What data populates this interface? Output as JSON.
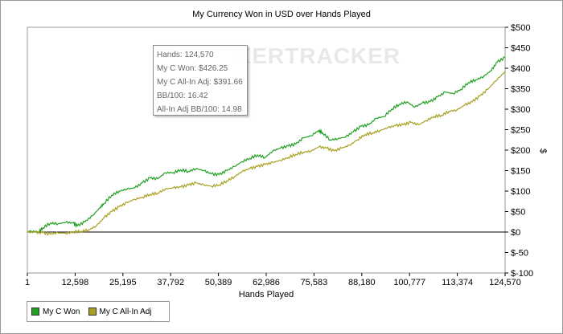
{
  "chart_data": {
    "type": "line",
    "title": "My Currency Won in USD over Hands Played",
    "xlabel": "Hands Played",
    "ylabel": "$",
    "xlim": [
      1,
      124570
    ],
    "ylim": [
      -100,
      500
    ],
    "x_ticks": [
      "1",
      "12,598",
      "25,195",
      "37,792",
      "50,389",
      "62,986",
      "75,583",
      "88,180",
      "100,777",
      "113,374",
      "124,570"
    ],
    "y_ticks": [
      "$500",
      "$450",
      "$400",
      "$350",
      "$300",
      "$250",
      "$200",
      "$150",
      "$100",
      "$50",
      "$0",
      "$-50",
      "$-100"
    ],
    "grid": false,
    "legend_position": "bottom-left",
    "series": [
      {
        "name": "My C Won",
        "color": "#22a022",
        "x": [
          1,
          1000,
          3000,
          4000,
          6000,
          8000,
          10000,
          12000,
          13000,
          15000,
          17000,
          19000,
          20000,
          22000,
          24000,
          26000,
          28000,
          30000,
          32000,
          34000,
          36000,
          38000,
          40000,
          42000,
          44000,
          46000,
          48000,
          50000,
          52000,
          54000,
          56000,
          58000,
          60000,
          62000,
          64000,
          66000,
          68000,
          70000,
          72000,
          74000,
          76000,
          77000,
          79000,
          81000,
          83000,
          85000,
          87000,
          89000,
          91000,
          93000,
          95000,
          97000,
          99000,
          101000,
          103000,
          105000,
          107000,
          109000,
          111000,
          113000,
          115000,
          117000,
          119000,
          121000,
          122500,
          124570
        ],
        "y": [
          0,
          2,
          0,
          10,
          22,
          20,
          24,
          22,
          15,
          25,
          40,
          60,
          70,
          90,
          100,
          105,
          108,
          120,
          132,
          130,
          145,
          145,
          152,
          148,
          155,
          150,
          142,
          140,
          150,
          160,
          172,
          180,
          188,
          182,
          198,
          205,
          210,
          215,
          230,
          235,
          248,
          242,
          225,
          228,
          232,
          245,
          258,
          262,
          278,
          282,
          300,
          312,
          318,
          305,
          315,
          318,
          330,
          342,
          338,
          348,
          365,
          372,
          380,
          395,
          415,
          426.25
        ]
      },
      {
        "name": "My C All-In Adj",
        "color": "#a8a020",
        "x": [
          1,
          2000,
          4000,
          6000,
          8000,
          10000,
          12000,
          14000,
          16000,
          18000,
          20000,
          22000,
          24000,
          26000,
          28000,
          30000,
          32000,
          34000,
          36000,
          38000,
          40000,
          42000,
          44000,
          46000,
          48000,
          50000,
          52000,
          54000,
          56000,
          58000,
          60000,
          62000,
          64000,
          66000,
          68000,
          70000,
          72000,
          74000,
          76000,
          78000,
          80000,
          82000,
          84000,
          86000,
          88000,
          90000,
          92000,
          94000,
          96000,
          98000,
          100000,
          102000,
          104000,
          106000,
          108000,
          110000,
          112000,
          114000,
          116000,
          118000,
          120000,
          122000,
          124570
        ],
        "y": [
          0,
          0,
          -2,
          -5,
          -2,
          -3,
          0,
          2,
          5,
          15,
          35,
          50,
          62,
          72,
          80,
          85,
          92,
          95,
          105,
          108,
          110,
          115,
          120,
          115,
          112,
          115,
          125,
          135,
          148,
          155,
          160,
          165,
          170,
          175,
          182,
          190,
          195,
          198,
          208,
          205,
          198,
          205,
          212,
          225,
          238,
          242,
          248,
          255,
          260,
          262,
          268,
          262,
          272,
          282,
          285,
          295,
          298,
          310,
          318,
          332,
          348,
          368,
          391.66
        ]
      }
    ]
  },
  "tooltip": {
    "lines": [
      "Hands: 124,570",
      "My C Won: $426.25",
      "My C All-In Adj: $391.66",
      "BB/100: 16.42",
      "All-In Adj BB/100: 14.98"
    ]
  },
  "watermark": "KERTRACKER"
}
